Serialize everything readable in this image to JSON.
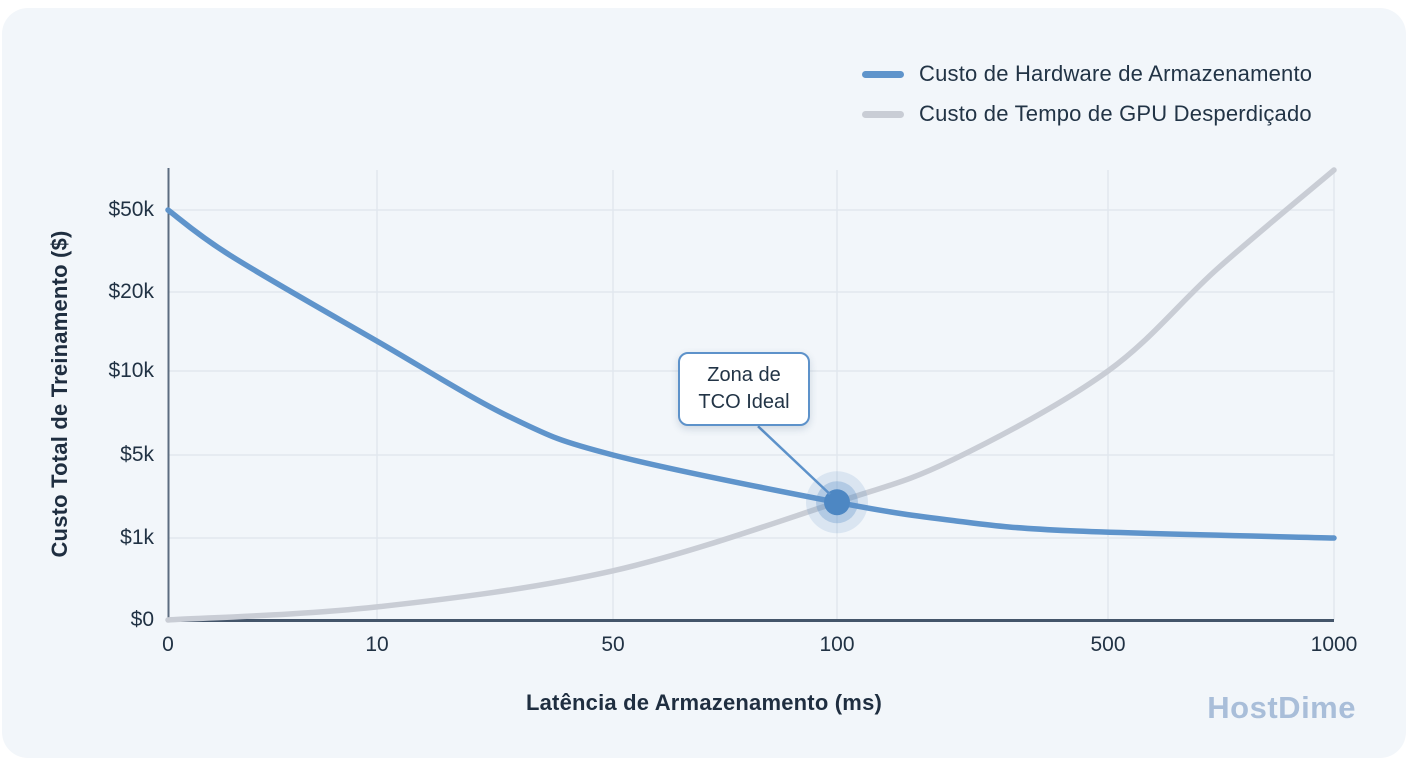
{
  "watermark": "HostDime",
  "colors": {
    "card_background": "#f2f6fa",
    "hardware_line": "#5f94cb",
    "gpu_line": "#c9cdd5",
    "annotation_accent": "#5d92ca",
    "marker_dot": "#4d87c3",
    "text_dark": "#213244",
    "gridline": "#e1e7ee",
    "axis_line": "#44556a",
    "watermark_color": "#a9bed9"
  },
  "legend": {
    "items": [
      {
        "label": "Custo de Hardware de Armazenamento",
        "color": "#5f94cb"
      },
      {
        "label": "Custo de Tempo de GPU Desperdiçado",
        "color": "#c9cdd5"
      }
    ]
  },
  "chart_data": {
    "type": "line",
    "xlabel": "Latência de Armazenamento (ms)",
    "ylabel": "Custo Total de Treinamento ($)",
    "x_scale": "log-like (0 then log spacing)",
    "y_scale": "log-like (0 then log spacing)",
    "grid": true,
    "legend_position": "top-right",
    "x_ticks": {
      "values": [
        0,
        10,
        50,
        100,
        500,
        1000
      ],
      "labels": [
        "0",
        "10",
        "50",
        "100",
        "500",
        "1000"
      ]
    },
    "y_ticks": {
      "values": [
        0,
        1000,
        5000,
        10000,
        20000,
        50000
      ],
      "labels": [
        "$0",
        "$1k",
        "$5k",
        "$10k",
        "$20k",
        "$50k"
      ]
    },
    "xlim": [
      0,
      1000
    ],
    "ylim": [
      0,
      75000
    ],
    "series": [
      {
        "name": "Custo de Hardware de Armazenamento",
        "color": "#5f94cb",
        "points": [
          [
            0,
            50000
          ],
          [
            3,
            30000
          ],
          [
            10,
            13000
          ],
          [
            25,
            6800
          ],
          [
            50,
            5000
          ],
          [
            100,
            2000
          ],
          [
            200,
            1400
          ],
          [
            400,
            1150
          ],
          [
            1000,
            1000
          ]
        ]
      },
      {
        "name": "Custo de Tempo de GPU Desperdiçado",
        "color": "#c9cdd5",
        "points": [
          [
            0,
            0
          ],
          [
            10,
            160
          ],
          [
            50,
            600
          ],
          [
            100,
            2000
          ],
          [
            200,
            4600
          ],
          [
            500,
            10000
          ],
          [
            700,
            26000
          ],
          [
            1000,
            75000
          ]
        ]
      }
    ],
    "annotation": {
      "line1": "Zona de",
      "line2": "TCO Ideal",
      "point": [
        100,
        2000
      ],
      "meaning": "intersection of the two cost curves"
    }
  }
}
